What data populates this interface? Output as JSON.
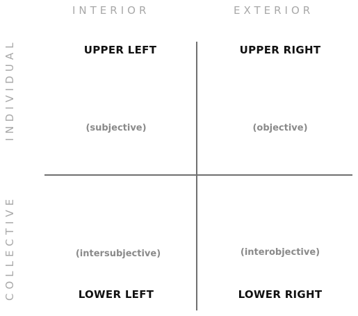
{
  "columns": {
    "interior": "INTERIOR",
    "exterior": "EXTERIOR"
  },
  "rows": {
    "individual": "INDIVIDUAL",
    "collective": "COLLECTIVE"
  },
  "quadrants": {
    "upper_left": {
      "title": "UPPER LEFT",
      "subtitle": "(subjective)"
    },
    "upper_right": {
      "title": "UPPER RIGHT",
      "subtitle": "(objective)"
    },
    "lower_left": {
      "title": "LOWER LEFT",
      "subtitle": "(intersubjective)"
    },
    "lower_right": {
      "title": "LOWER RIGHT",
      "subtitle": "(interobjective)"
    }
  }
}
